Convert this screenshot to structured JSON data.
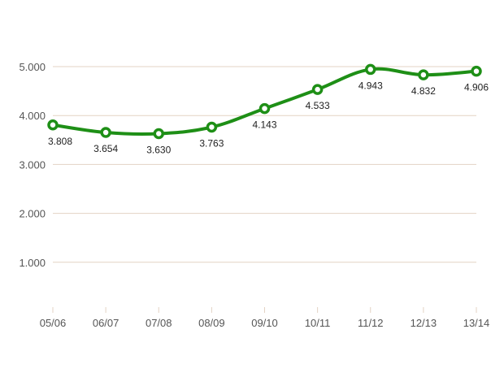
{
  "colors": {
    "series": "#1e8f16",
    "grid": "#e3d3c4",
    "marker_fill": "#ffffff"
  },
  "chart_data": {
    "type": "line",
    "title": "",
    "xlabel": "",
    "ylabel": "",
    "categories": [
      "05/06",
      "06/07",
      "07/08",
      "08/09",
      "09/10",
      "10/11",
      "11/12",
      "12/13",
      "13/14"
    ],
    "series": [
      {
        "values": [
          3808,
          3654,
          3630,
          3763,
          4143,
          4533,
          4943,
          4832,
          4906
        ],
        "labels": [
          "3.808",
          "3.654",
          "3.630",
          "3.763",
          "4.143",
          "4.533",
          "4.943",
          "4.832",
          "4.906"
        ]
      }
    ],
    "ylim": [
      0,
      5000
    ],
    "yticks": [
      1000,
      2000,
      3000,
      4000,
      5000
    ],
    "ytick_labels": [
      "1.000",
      "2.000",
      "3.000",
      "4.000",
      "5.000"
    ],
    "grid": true,
    "smooth": true,
    "markers": "open-circle"
  }
}
